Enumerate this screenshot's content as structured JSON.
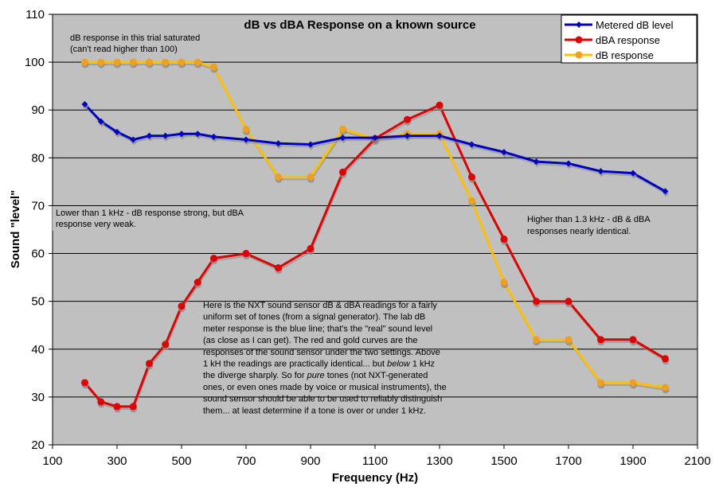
{
  "chart_data": {
    "type": "line",
    "title": "dB vs dBA Response on a known source",
    "xlabel": "Frequency (Hz)",
    "ylabel": "Sound \"level\"",
    "xlim": [
      100,
      2100
    ],
    "ylim": [
      20,
      110
    ],
    "xticks": [
      100,
      300,
      500,
      700,
      900,
      1100,
      1300,
      1500,
      1700,
      1900,
      2100
    ],
    "yticks": [
      20,
      30,
      40,
      50,
      60,
      70,
      80,
      90,
      100,
      110
    ],
    "grid": "horizontal",
    "legend_position": "top-right",
    "series": [
      {
        "name": "Metered dB level",
        "color": "#0000c0",
        "marker": "diamond",
        "x": [
          200,
          250,
          300,
          350,
          400,
          450,
          500,
          550,
          600,
          700,
          800,
          900,
          1000,
          1100,
          1200,
          1300,
          1400,
          1500,
          1600,
          1700,
          1800,
          1900,
          2000
        ],
        "y": [
          91.2,
          87.6,
          85.4,
          83.8,
          84.6,
          84.6,
          85.0,
          85.0,
          84.4,
          83.8,
          83.0,
          82.8,
          84.2,
          84.2,
          84.6,
          84.6,
          82.8,
          81.2,
          79.2,
          78.8,
          77.2,
          76.8,
          73.0
        ]
      },
      {
        "name": "dBA response",
        "color": "#dd0000",
        "marker": "circle",
        "x": [
          200,
          250,
          300,
          350,
          400,
          450,
          500,
          550,
          600,
          700,
          800,
          900,
          1000,
          1100,
          1200,
          1300,
          1400,
          1500,
          1600,
          1700,
          1800,
          1900,
          2000
        ],
        "y": [
          33,
          29,
          28,
          28,
          37,
          41,
          49,
          54,
          59,
          60,
          57,
          61,
          77,
          84,
          88,
          91,
          76,
          63,
          50,
          50,
          42,
          42,
          38
        ]
      },
      {
        "name": "dB response",
        "color": "#ffc000",
        "marker": "circle",
        "marker_color": "#f0a020",
        "x": [
          200,
          250,
          300,
          350,
          400,
          450,
          500,
          550,
          600,
          700,
          800,
          900,
          1000,
          1100,
          1200,
          1300,
          1400,
          1500,
          1600,
          1700,
          1800,
          1900,
          2000
        ],
        "y": [
          100,
          100,
          100,
          100,
          100,
          100,
          100,
          100,
          99,
          86,
          76,
          76,
          86,
          84,
          85,
          85,
          71,
          54,
          42,
          42,
          33,
          33,
          32
        ]
      }
    ],
    "annotations": [
      {
        "id": "saturated",
        "lines": [
          "dB response in this trial saturated",
          "(can't read higher than 100)"
        ]
      },
      {
        "id": "lower",
        "lines": [
          "Lower than 1 kHz - dB response strong, but dBA",
          "response very weak."
        ]
      },
      {
        "id": "higher",
        "lines": [
          "Higher than 1.3 kHz - dB & dBA",
          "responses nearly identical."
        ]
      },
      {
        "id": "explanation",
        "lines": [
          "Here is the NXT sound sensor dB & dBA readings for a fairly",
          "uniform set of tones (from a signal generator). The lab dB",
          "meter response is the blue line; that's the \"real\" sound level",
          "(as close as I can get). The red and gold curves are the",
          "responses of the sound sensor under the two settings. Above",
          "1 kH the readings are practically identical... but below 1 kHz",
          "the diverge sharply. So for pure tones (not NXT-generated",
          "ones, or even ones made by voice or musical instruments), the",
          "sound sensor should be able to be used to reliably distinguish",
          "them... at least determine if a tone is over or under 1 kHz."
        ]
      }
    ]
  }
}
